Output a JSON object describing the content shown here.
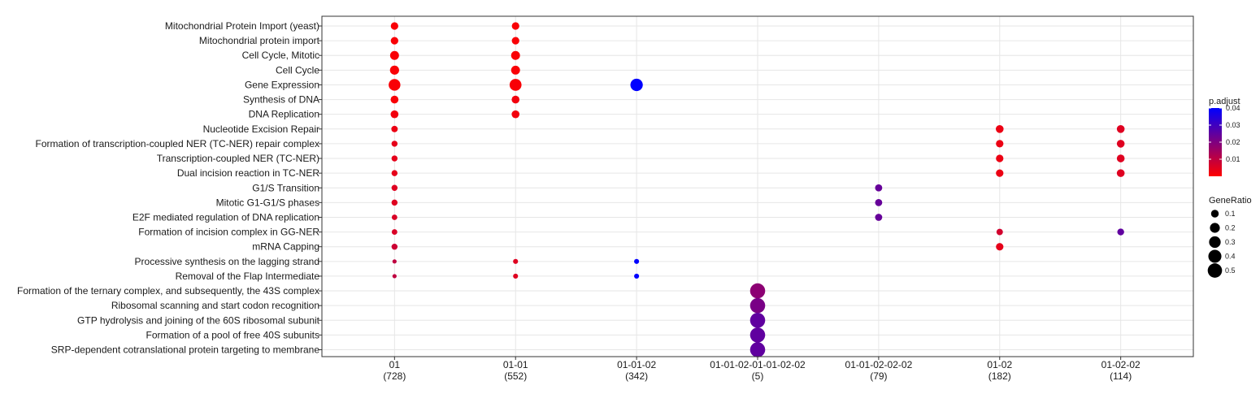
{
  "chart_data": {
    "type": "scatter",
    "title": "",
    "xlabel": "",
    "ylabel": "",
    "x_categories": [
      {
        "name": "01",
        "count": "(728)"
      },
      {
        "name": "01-01",
        "count": "(552)"
      },
      {
        "name": "01-01-02",
        "count": "(342)"
      },
      {
        "name": "01-01-02-01-01-02-02",
        "count": "(5)"
      },
      {
        "name": "01-01-02-02-02",
        "count": "(79)"
      },
      {
        "name": "01-02",
        "count": "(182)"
      },
      {
        "name": "01-02-02",
        "count": "(114)"
      }
    ],
    "y_categories": [
      "Mitochondrial Protein Import (yeast)",
      "Mitochondrial protein import",
      "Cell Cycle, Mitotic",
      "Cell Cycle",
      "Gene Expression",
      "Synthesis of DNA",
      "DNA Replication",
      "Nucleotide Excision Repair",
      "Formation of transcription-coupled NER (TC-NER) repair complex",
      "Transcription-coupled NER (TC-NER)",
      "Dual incision reaction in TC-NER",
      "G1/S Transition",
      "Mitotic G1-G1/S phases",
      "E2F mediated regulation of DNA replication",
      "Formation of incision complex in GG-NER",
      "mRNA Capping",
      "Processive synthesis on the lagging strand",
      "Removal of the Flap Intermediate",
      "Formation of the ternary complex, and subsequently, the 43S complex",
      "Ribosomal scanning and start codon recognition",
      "GTP hydrolysis and joining of the 60S ribosomal subunit",
      "Formation of a pool of free 40S subunits",
      "SRP-dependent cotranslational protein targeting to membrane"
    ],
    "points": [
      {
        "x": "01",
        "y": "Mitochondrial Protein Import (yeast)",
        "gene_ratio": 0.08,
        "p_adjust": 0.001
      },
      {
        "x": "01",
        "y": "Mitochondrial protein import",
        "gene_ratio": 0.08,
        "p_adjust": 0.001
      },
      {
        "x": "01",
        "y": "Cell Cycle, Mitotic",
        "gene_ratio": 0.13,
        "p_adjust": 0.001
      },
      {
        "x": "01",
        "y": "Cell Cycle",
        "gene_ratio": 0.14,
        "p_adjust": 0.001
      },
      {
        "x": "01",
        "y": "Gene Expression",
        "gene_ratio": 0.27,
        "p_adjust": 0.001
      },
      {
        "x": "01",
        "y": "Synthesis of DNA",
        "gene_ratio": 0.09,
        "p_adjust": 0.001
      },
      {
        "x": "01",
        "y": "DNA Replication",
        "gene_ratio": 0.09,
        "p_adjust": 0.002
      },
      {
        "x": "01",
        "y": "Nucleotide Excision Repair",
        "gene_ratio": 0.05,
        "p_adjust": 0.003
      },
      {
        "x": "01",
        "y": "Formation of transcription-coupled NER (TC-NER) repair complex",
        "gene_ratio": 0.04,
        "p_adjust": 0.004
      },
      {
        "x": "01",
        "y": "Transcription-coupled NER (TC-NER)",
        "gene_ratio": 0.04,
        "p_adjust": 0.004
      },
      {
        "x": "01",
        "y": "Dual incision reaction in TC-NER",
        "gene_ratio": 0.04,
        "p_adjust": 0.004
      },
      {
        "x": "01",
        "y": "G1/S Transition",
        "gene_ratio": 0.04,
        "p_adjust": 0.005
      },
      {
        "x": "01",
        "y": "Mitotic G1-G1/S phases",
        "gene_ratio": 0.04,
        "p_adjust": 0.005
      },
      {
        "x": "01",
        "y": "E2F mediated regulation of DNA replication",
        "gene_ratio": 0.03,
        "p_adjust": 0.006
      },
      {
        "x": "01",
        "y": "Formation of incision complex in GG-NER",
        "gene_ratio": 0.03,
        "p_adjust": 0.006
      },
      {
        "x": "01",
        "y": "mRNA Capping",
        "gene_ratio": 0.04,
        "p_adjust": 0.008
      },
      {
        "x": "01",
        "y": "Processive synthesis on the lagging strand",
        "gene_ratio": 0.01,
        "p_adjust": 0.01
      },
      {
        "x": "01",
        "y": "Removal of the Flap Intermediate",
        "gene_ratio": 0.01,
        "p_adjust": 0.01
      },
      {
        "x": "01-01",
        "y": "Mitochondrial Protein Import (yeast)",
        "gene_ratio": 0.08,
        "p_adjust": 0.001
      },
      {
        "x": "01-01",
        "y": "Mitochondrial protein import",
        "gene_ratio": 0.08,
        "p_adjust": 0.001
      },
      {
        "x": "01-01",
        "y": "Cell Cycle, Mitotic",
        "gene_ratio": 0.13,
        "p_adjust": 0.001
      },
      {
        "x": "01-01",
        "y": "Cell Cycle",
        "gene_ratio": 0.13,
        "p_adjust": 0.001
      },
      {
        "x": "01-01",
        "y": "Gene Expression",
        "gene_ratio": 0.28,
        "p_adjust": 0.001
      },
      {
        "x": "01-01",
        "y": "Synthesis of DNA",
        "gene_ratio": 0.09,
        "p_adjust": 0.002
      },
      {
        "x": "01-01",
        "y": "DNA Replication",
        "gene_ratio": 0.09,
        "p_adjust": 0.002
      },
      {
        "x": "01-01",
        "y": "Processive synthesis on the lagging strand",
        "gene_ratio": 0.02,
        "p_adjust": 0.005
      },
      {
        "x": "01-01",
        "y": "Removal of the Flap Intermediate",
        "gene_ratio": 0.02,
        "p_adjust": 0.005
      },
      {
        "x": "01-01-02",
        "y": "Gene Expression",
        "gene_ratio": 0.31,
        "p_adjust": 0.04
      },
      {
        "x": "01-01-02",
        "y": "Processive synthesis on the lagging strand",
        "gene_ratio": 0.02,
        "p_adjust": 0.04
      },
      {
        "x": "01-01-02",
        "y": "Removal of the Flap Intermediate",
        "gene_ratio": 0.02,
        "p_adjust": 0.04
      },
      {
        "x": "01-01-02-01-01-02-02",
        "y": "Formation of the ternary complex, and subsequently, the 43S complex",
        "gene_ratio": 0.5,
        "p_adjust": 0.018
      },
      {
        "x": "01-01-02-01-01-02-02",
        "y": "Ribosomal scanning and start codon recognition",
        "gene_ratio": 0.5,
        "p_adjust": 0.021
      },
      {
        "x": "01-01-02-01-01-02-02",
        "y": "GTP hydrolysis and joining of the 60S ribosomal subunit",
        "gene_ratio": 0.5,
        "p_adjust": 0.025
      },
      {
        "x": "01-01-02-01-01-02-02",
        "y": "Formation of a pool of free 40S subunits",
        "gene_ratio": 0.5,
        "p_adjust": 0.025
      },
      {
        "x": "01-01-02-01-01-02-02",
        "y": "SRP-dependent cotranslational protein targeting to membrane",
        "gene_ratio": 0.5,
        "p_adjust": 0.025
      },
      {
        "x": "01-01-02-02-02",
        "y": "G1/S Transition",
        "gene_ratio": 0.07,
        "p_adjust": 0.024
      },
      {
        "x": "01-01-02-02-02",
        "y": "Mitotic G1-G1/S phases",
        "gene_ratio": 0.07,
        "p_adjust": 0.024
      },
      {
        "x": "01-01-02-02-02",
        "y": "E2F mediated regulation of DNA replication",
        "gene_ratio": 0.07,
        "p_adjust": 0.024
      },
      {
        "x": "01-02",
        "y": "Nucleotide Excision Repair",
        "gene_ratio": 0.09,
        "p_adjust": 0.003
      },
      {
        "x": "01-02",
        "y": "Formation of transcription-coupled NER (TC-NER) repair complex",
        "gene_ratio": 0.08,
        "p_adjust": 0.003
      },
      {
        "x": "01-02",
        "y": "Transcription-coupled NER (TC-NER)",
        "gene_ratio": 0.08,
        "p_adjust": 0.003
      },
      {
        "x": "01-02",
        "y": "Dual incision reaction in TC-NER",
        "gene_ratio": 0.08,
        "p_adjust": 0.003
      },
      {
        "x": "01-02",
        "y": "Formation of incision complex in GG-NER",
        "gene_ratio": 0.05,
        "p_adjust": 0.007
      },
      {
        "x": "01-02",
        "y": "mRNA Capping",
        "gene_ratio": 0.08,
        "p_adjust": 0.004
      },
      {
        "x": "01-02-02",
        "y": "Nucleotide Excision Repair",
        "gene_ratio": 0.09,
        "p_adjust": 0.005
      },
      {
        "x": "01-02-02",
        "y": "Formation of transcription-coupled NER (TC-NER) repair complex",
        "gene_ratio": 0.09,
        "p_adjust": 0.005
      },
      {
        "x": "01-02-02",
        "y": "Transcription-coupled NER (TC-NER)",
        "gene_ratio": 0.09,
        "p_adjust": 0.005
      },
      {
        "x": "01-02-02",
        "y": "Dual incision reaction in TC-NER",
        "gene_ratio": 0.09,
        "p_adjust": 0.005
      },
      {
        "x": "01-02-02",
        "y": "Formation of incision complex in GG-NER",
        "gene_ratio": 0.06,
        "p_adjust": 0.025
      }
    ],
    "color_legend": {
      "title": "p.adjust",
      "min": 0,
      "max": 0.04,
      "low_color": "#ff0000",
      "high_color": "#0000ff",
      "ticks": [
        {
          "value": 0.01,
          "label": "0.01"
        },
        {
          "value": 0.02,
          "label": "0.02"
        },
        {
          "value": 0.03,
          "label": "0.03"
        },
        {
          "value": 0.04,
          "label": "0.04"
        }
      ]
    },
    "size_legend": {
      "title": "GeneRatio",
      "entries": [
        {
          "value": 0.1,
          "label": "0.1"
        },
        {
          "value": 0.2,
          "label": "0.2"
        },
        {
          "value": 0.3,
          "label": "0.3"
        },
        {
          "value": 0.4,
          "label": "0.4"
        },
        {
          "value": 0.5,
          "label": "0.5"
        }
      ]
    },
    "grid": true,
    "legend_position": "right"
  }
}
